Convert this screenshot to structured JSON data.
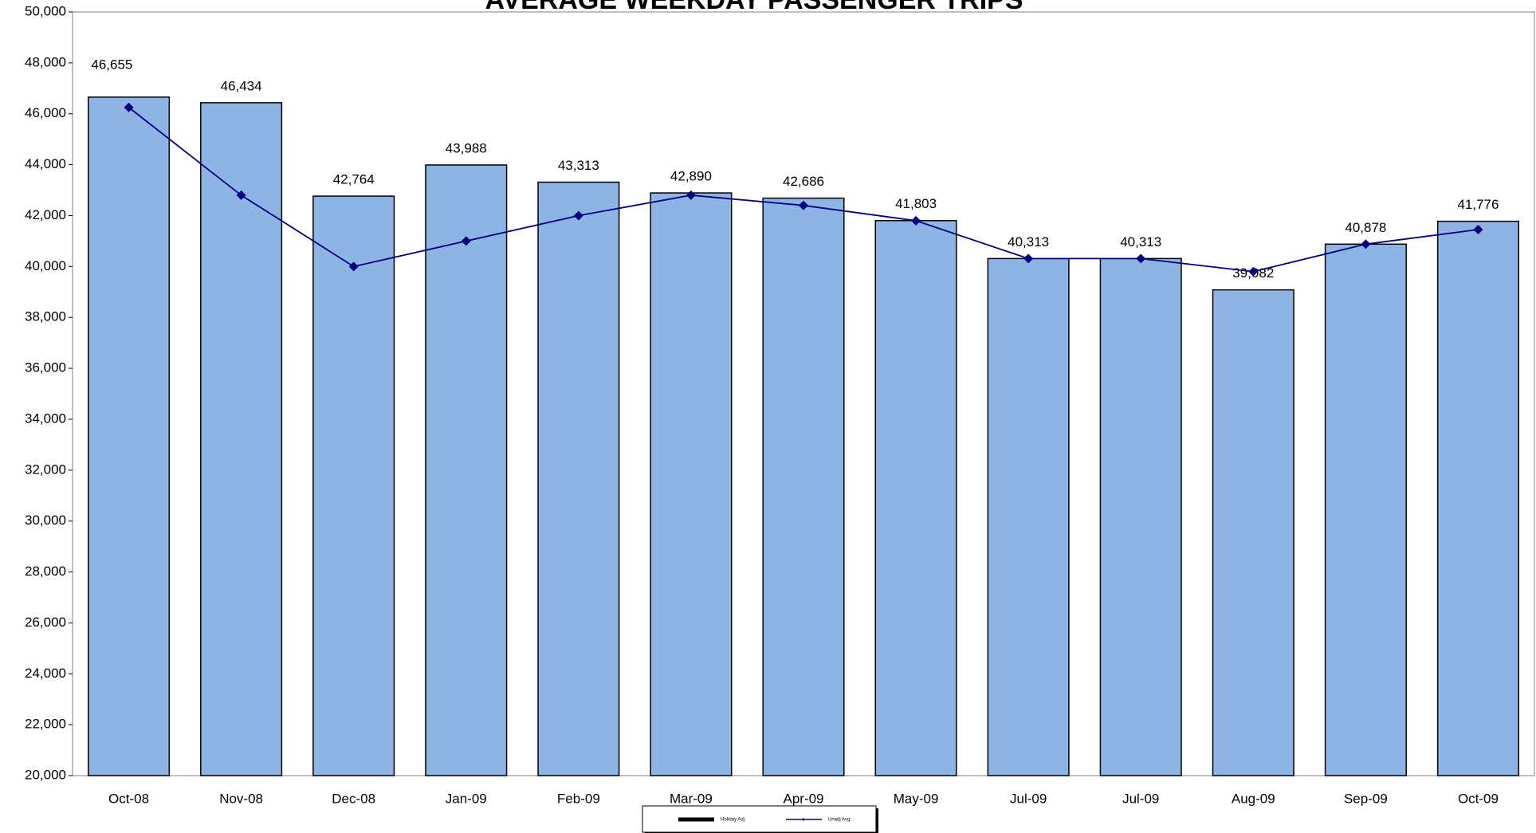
{
  "chart_data": {
    "type": "bar",
    "title": "AVERAGE WEEKDAY PASSENGER TRIPS",
    "categories": [
      "Oct-08",
      "Nov-08",
      "Dec-08",
      "Jan-09",
      "Feb-09",
      "Mar-09",
      "Apr-09",
      "May-09",
      "Jul-09",
      "Jul-09",
      "Aug-09",
      "Sep-09",
      "Oct-09"
    ],
    "series": [
      {
        "name": "Holiday Adj",
        "type": "bar",
        "color": "#8eb4e3",
        "values": [
          46655,
          46434,
          42764,
          43988,
          43313,
          42890,
          42686,
          41803,
          40313,
          40313,
          39082,
          40878,
          41776
        ],
        "value_labels": [
          "46,655",
          "46,434",
          "42,764",
          "43,988",
          "43,313",
          "42,890",
          "42,686",
          "41,803",
          "40,313",
          "40,313",
          "39,082",
          "40,878",
          "41,776"
        ]
      },
      {
        "name": "Unadj Avg",
        "type": "line",
        "color": "#000080",
        "values": [
          46250,
          42800,
          40000,
          41000,
          42000,
          42800,
          42400,
          41800,
          40313,
          40313,
          39800,
          40878,
          41450
        ]
      }
    ],
    "ylim": [
      20000,
      50000
    ],
    "yticks": [
      {
        "value": 20000,
        "label": "20,000"
      },
      {
        "value": 22000,
        "label": "22,000"
      },
      {
        "value": 24000,
        "label": "24,000"
      },
      {
        "value": 26000,
        "label": "26,000"
      },
      {
        "value": 28000,
        "label": "28,000"
      },
      {
        "value": 30000,
        "label": "30,000"
      },
      {
        "value": 32000,
        "label": "32,000"
      },
      {
        "value": 34000,
        "label": "34,000"
      },
      {
        "value": 36000,
        "label": "36,000"
      },
      {
        "value": 38000,
        "label": "38,000"
      },
      {
        "value": 40000,
        "label": "40,000"
      },
      {
        "value": 42000,
        "label": "42,000"
      },
      {
        "value": 44000,
        "label": "44,000"
      },
      {
        "value": 46000,
        "label": "46,000"
      },
      {
        "value": 48000,
        "label": "48,000"
      },
      {
        "value": 50000,
        "label": "50,000"
      }
    ],
    "grid": false
  }
}
